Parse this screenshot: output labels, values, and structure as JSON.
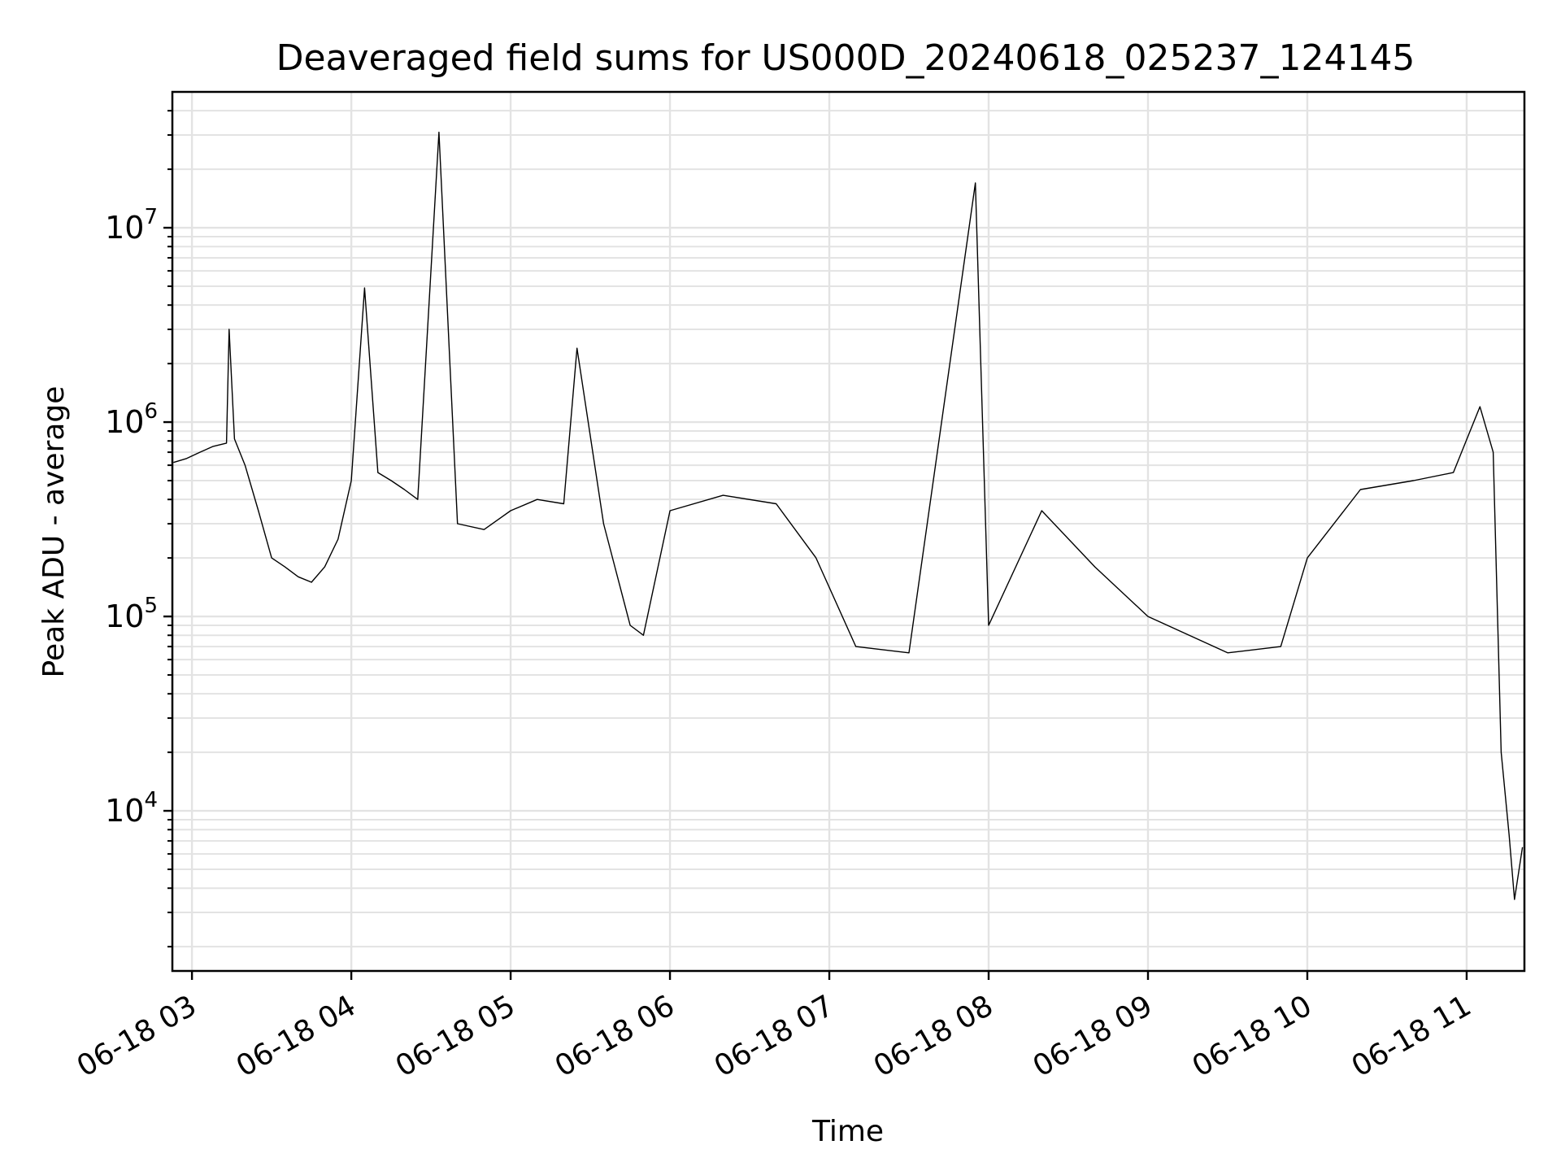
{
  "chart_data": {
    "type": "line",
    "title": "Deaveraged field sums for US000D_20240618_025237_124145",
    "xlabel": "Time",
    "ylabel": "Peak ADU - average",
    "yscale": "log",
    "ylim": [
      1500,
      50000000
    ],
    "xlim": [
      "2024-06-18 02:52:37",
      "2024-06-18 11:21:45"
    ],
    "grid": true,
    "line_color": "#000000",
    "grid_color": "#e3e3e3",
    "x_ticks": [
      {
        "value": "2024-06-18 03:00",
        "label": "06-18 03"
      },
      {
        "value": "2024-06-18 04:00",
        "label": "06-18 04"
      },
      {
        "value": "2024-06-18 05:00",
        "label": "06-18 05"
      },
      {
        "value": "2024-06-18 06:00",
        "label": "06-18 06"
      },
      {
        "value": "2024-06-18 07:00",
        "label": "06-18 07"
      },
      {
        "value": "2024-06-18 08:00",
        "label": "06-18 08"
      },
      {
        "value": "2024-06-18 09:00",
        "label": "06-18 09"
      },
      {
        "value": "2024-06-18 10:00",
        "label": "06-18 10"
      },
      {
        "value": "2024-06-18 11:00",
        "label": "06-18 11"
      }
    ],
    "y_ticks": [
      {
        "value": 10000,
        "base": "10",
        "exp": "4"
      },
      {
        "value": 100000,
        "base": "10",
        "exp": "5"
      },
      {
        "value": 1000000,
        "base": "10",
        "exp": "6"
      },
      {
        "value": 10000000,
        "base": "10",
        "exp": "7"
      }
    ],
    "series": [
      {
        "points": [
          [
            "2024-06-18 02:53",
            620000
          ],
          [
            "2024-06-18 02:58",
            650000
          ],
          [
            "2024-06-18 03:03",
            700000
          ],
          [
            "2024-06-18 03:08",
            750000
          ],
          [
            "2024-06-18 03:13",
            780000
          ],
          [
            "2024-06-18 03:14",
            3000000
          ],
          [
            "2024-06-18 03:16",
            820000
          ],
          [
            "2024-06-18 03:20",
            600000
          ],
          [
            "2024-06-18 03:25",
            350000
          ],
          [
            "2024-06-18 03:30",
            200000
          ],
          [
            "2024-06-18 03:35",
            180000
          ],
          [
            "2024-06-18 03:40",
            160000
          ],
          [
            "2024-06-18 03:45",
            150000
          ],
          [
            "2024-06-18 03:50",
            180000
          ],
          [
            "2024-06-18 03:55",
            250000
          ],
          [
            "2024-06-18 04:00",
            500000
          ],
          [
            "2024-06-18 04:05",
            4900000
          ],
          [
            "2024-06-18 04:10",
            550000
          ],
          [
            "2024-06-18 04:15",
            500000
          ],
          [
            "2024-06-18 04:20",
            450000
          ],
          [
            "2024-06-18 04:25",
            400000
          ],
          [
            "2024-06-18 04:33",
            31000000
          ],
          [
            "2024-06-18 04:40",
            300000
          ],
          [
            "2024-06-18 04:50",
            280000
          ],
          [
            "2024-06-18 05:00",
            350000
          ],
          [
            "2024-06-18 05:10",
            400000
          ],
          [
            "2024-06-18 05:20",
            380000
          ],
          [
            "2024-06-18 05:25",
            2400000
          ],
          [
            "2024-06-18 05:35",
            300000
          ],
          [
            "2024-06-18 05:45",
            90000
          ],
          [
            "2024-06-18 05:50",
            80000
          ],
          [
            "2024-06-18 06:00",
            350000
          ],
          [
            "2024-06-18 06:20",
            420000
          ],
          [
            "2024-06-18 06:40",
            380000
          ],
          [
            "2024-06-18 06:55",
            200000
          ],
          [
            "2024-06-18 07:10",
            70000
          ],
          [
            "2024-06-18 07:30",
            65000
          ],
          [
            "2024-06-18 07:55",
            17000000
          ],
          [
            "2024-06-18 08:00",
            90000
          ],
          [
            "2024-06-18 08:20",
            350000
          ],
          [
            "2024-06-18 08:40",
            180000
          ],
          [
            "2024-06-18 09:00",
            100000
          ],
          [
            "2024-06-18 09:30",
            65000
          ],
          [
            "2024-06-18 09:50",
            70000
          ],
          [
            "2024-06-18 10:00",
            200000
          ],
          [
            "2024-06-18 10:20",
            450000
          ],
          [
            "2024-06-18 10:40",
            500000
          ],
          [
            "2024-06-18 10:55",
            550000
          ],
          [
            "2024-06-18 11:05",
            1200000
          ],
          [
            "2024-06-18 11:10",
            700000
          ],
          [
            "2024-06-18 11:13",
            20000
          ],
          [
            "2024-06-18 11:16",
            7500
          ],
          [
            "2024-06-18 11:18",
            3500
          ],
          [
            "2024-06-18 11:21",
            6500
          ]
        ]
      }
    ]
  }
}
